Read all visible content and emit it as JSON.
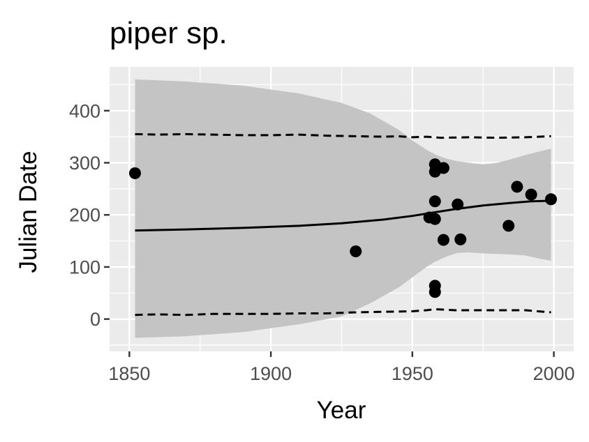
{
  "chart_data": {
    "type": "scatter",
    "title": "piper sp.",
    "xlabel": "Year",
    "ylabel": "Julian Date",
    "xlim": [
      1843,
      2007
    ],
    "ylim": [
      -62,
      484
    ],
    "x_ticks": [
      1850,
      1900,
      1950,
      2000
    ],
    "y_ticks": [
      0,
      100,
      200,
      300,
      400
    ],
    "grid": true,
    "legend": "none",
    "colors": {
      "panel": "#ebebeb",
      "grid": "#ffffff",
      "ribbon": "#c4c4c4",
      "points": "#000000",
      "line": "#000000",
      "tick": "#333333",
      "tick_label": "#4d4d4d"
    },
    "points": [
      {
        "x": 1852,
        "y": 280
      },
      {
        "x": 1930,
        "y": 130
      },
      {
        "x": 1956,
        "y": 195
      },
      {
        "x": 1958,
        "y": 297
      },
      {
        "x": 1958,
        "y": 283
      },
      {
        "x": 1958,
        "y": 226
      },
      {
        "x": 1958,
        "y": 192
      },
      {
        "x": 1958,
        "y": 64
      },
      {
        "x": 1958,
        "y": 52
      },
      {
        "x": 1961,
        "y": 290
      },
      {
        "x": 1961,
        "y": 152
      },
      {
        "x": 1966,
        "y": 220
      },
      {
        "x": 1967,
        "y": 153
      },
      {
        "x": 1984,
        "y": 179
      },
      {
        "x": 1987,
        "y": 254
      },
      {
        "x": 1992,
        "y": 239
      },
      {
        "x": 1999,
        "y": 230
      }
    ],
    "fit_line": {
      "x": [
        1852,
        1870,
        1890,
        1910,
        1925,
        1940,
        1950,
        1958,
        1965,
        1975,
        1985,
        1992,
        1999
      ],
      "y": [
        170,
        172,
        175,
        179,
        184,
        191,
        198,
        205,
        211,
        218,
        223,
        226,
        227
      ]
    },
    "ribbon": {
      "x": [
        1852,
        1870,
        1890,
        1910,
        1925,
        1935,
        1945,
        1950,
        1955,
        1958,
        1962,
        1966,
        1970,
        1975,
        1980,
        1985,
        1990,
        1995,
        1999
      ],
      "upper": [
        460,
        456,
        448,
        433,
        415,
        395,
        364,
        343,
        325,
        316,
        308,
        303,
        300,
        297,
        300,
        307,
        315,
        322,
        327
      ],
      "lower": [
        -36,
        -33,
        -25,
        -10,
        5,
        30,
        60,
        80,
        100,
        110,
        120,
        127,
        128,
        126,
        125,
        124,
        122,
        116,
        112
      ]
    },
    "upper_dashed": {
      "x": [
        1852,
        1860,
        1870,
        1880,
        1890,
        1900,
        1910,
        1920,
        1930,
        1940,
        1945,
        1950,
        1955,
        1960,
        1970,
        1980,
        1990,
        1999
      ],
      "y": [
        355,
        354,
        355,
        354,
        353,
        353,
        354,
        352,
        351,
        350,
        351,
        349,
        350,
        348,
        349,
        348,
        349,
        351
      ]
    },
    "lower_dashed": {
      "x": [
        1852,
        1860,
        1870,
        1880,
        1890,
        1900,
        1910,
        1920,
        1930,
        1940,
        1950,
        1955,
        1958,
        1965,
        1970,
        1980,
        1990,
        1999
      ],
      "y": [
        8,
        9,
        8,
        10,
        10,
        10,
        11,
        11,
        13,
        14,
        15,
        17,
        19,
        17,
        17,
        17,
        17,
        13
      ]
    }
  }
}
